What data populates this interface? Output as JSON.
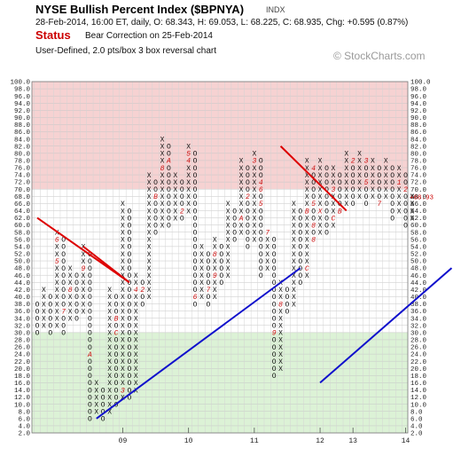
{
  "header": {
    "title": "NYSE Bullish Percent Index ($BPNYA)",
    "symbol_tag": "INDX",
    "quote": "28-Feb-2014, 16:00 ET, daily, O: 68.343, H: 69.053, L: 68.225, C: 68.935, Chg: +0.595 (0.87%)",
    "status_label": "Status",
    "status_text": "Bear Correction on 25-Feb-2014",
    "subtitle": "User-Defined, 2.0 pts/box 3 box reversal chart",
    "watermark": "© StockCharts.com"
  },
  "chart_data": {
    "type": "point-and-figure",
    "box_size": 2.0,
    "reversal": 3,
    "ylim": [
      2,
      100
    ],
    "y_ticks": [
      2.0,
      4.0,
      6.0,
      8.0,
      10.0,
      12.0,
      14.0,
      16.0,
      18.0,
      20.0,
      22.0,
      24.0,
      26.0,
      28.0,
      30.0,
      32.0,
      34.0,
      36.0,
      38.0,
      40.0,
      42.0,
      44.0,
      46.0,
      48.0,
      50.0,
      52.0,
      54.0,
      56.0,
      58.0,
      60.0,
      62.0,
      64.0,
      66.0,
      68.0,
      70.0,
      72.0,
      74.0,
      76.0,
      78.0,
      80.0,
      82.0,
      84.0,
      86.0,
      88.0,
      90.0,
      92.0,
      94.0,
      96.0,
      98.0,
      100.0
    ],
    "zones": [
      {
        "name": "overbought",
        "from": 70,
        "to": 100,
        "color": "#f6d2d2"
      },
      {
        "name": "oversold",
        "from": 2,
        "to": 30,
        "color": "#dcf2d6"
      }
    ],
    "last_value_label": "68.93",
    "year_labels": [
      {
        "text": "09",
        "column": 13
      },
      {
        "text": "10",
        "column": 23
      },
      {
        "text": "11",
        "column": 33
      },
      {
        "text": "12",
        "column": 43
      },
      {
        "text": "13",
        "column": 48
      },
      {
        "text": "14",
        "column": 56
      }
    ],
    "columns": [
      {
        "type": "O",
        "high": 38,
        "low": 30
      },
      {
        "type": "X",
        "high": 42,
        "low": 32
      },
      {
        "type": "O",
        "high": 40,
        "low": 30
      },
      {
        "type": "X",
        "high": 58,
        "low": 32
      },
      {
        "type": "O",
        "high": 56,
        "low": 30
      },
      {
        "type": "X",
        "high": 48,
        "low": 34
      },
      {
        "type": "O",
        "high": 46,
        "low": 34
      },
      {
        "type": "X",
        "high": 54,
        "low": 36
      },
      {
        "type": "O",
        "high": 52,
        "low": 6
      },
      {
        "type": "X",
        "high": 16,
        "low": 8
      },
      {
        "type": "O",
        "high": 14,
        "low": 6
      },
      {
        "type": "X",
        "high": 42,
        "low": 8
      },
      {
        "type": "O",
        "high": 40,
        "low": 10
      },
      {
        "type": "X",
        "high": 66,
        "low": 12
      },
      {
        "type": "O",
        "high": 64,
        "low": 12
      },
      {
        "type": "X",
        "high": 46,
        "low": 14
      },
      {
        "type": "O",
        "high": 44,
        "low": 38
      },
      {
        "type": "X",
        "high": 74,
        "low": 40
      },
      {
        "type": "O",
        "high": 72,
        "low": 58
      },
      {
        "type": "X",
        "high": 84,
        "low": 60
      },
      {
        "type": "O",
        "high": 82,
        "low": 60
      },
      {
        "type": "X",
        "high": 74,
        "low": 62
      },
      {
        "type": "O",
        "high": 72,
        "low": 62
      },
      {
        "type": "X",
        "high": 82,
        "low": 64
      },
      {
        "type": "O",
        "high": 80,
        "low": 38
      },
      {
        "type": "X",
        "high": 54,
        "low": 40
      },
      {
        "type": "O",
        "high": 52,
        "low": 38
      },
      {
        "type": "X",
        "high": 56,
        "low": 40
      },
      {
        "type": "O",
        "high": 54,
        "low": 44
      },
      {
        "type": "X",
        "high": 66,
        "low": 46
      },
      {
        "type": "O",
        "high": 64,
        "low": 56
      },
      {
        "type": "X",
        "high": 78,
        "low": 58
      },
      {
        "type": "O",
        "high": 76,
        "low": 54
      },
      {
        "type": "X",
        "high": 80,
        "low": 56
      },
      {
        "type": "O",
        "high": 78,
        "low": 46
      },
      {
        "type": "X",
        "high": 58,
        "low": 48
      },
      {
        "type": "O",
        "high": 56,
        "low": 18
      },
      {
        "type": "X",
        "high": 44,
        "low": 20
      },
      {
        "type": "O",
        "high": 42,
        "low": 36
      },
      {
        "type": "X",
        "high": 66,
        "low": 38
      },
      {
        "type": "O",
        "high": 64,
        "low": 44
      },
      {
        "type": "X",
        "high": 78,
        "low": 46
      },
      {
        "type": "O",
        "high": 76,
        "low": 56
      },
      {
        "type": "X",
        "high": 78,
        "low": 58
      },
      {
        "type": "O",
        "high": 76,
        "low": 58
      },
      {
        "type": "X",
        "high": 76,
        "low": 60
      },
      {
        "type": "O",
        "high": 74,
        "low": 64
      },
      {
        "type": "X",
        "high": 80,
        "low": 66
      },
      {
        "type": "O",
        "high": 78,
        "low": 66
      },
      {
        "type": "X",
        "high": 80,
        "low": 68
      },
      {
        "type": "O",
        "high": 78,
        "low": 66
      },
      {
        "type": "X",
        "high": 78,
        "low": 68
      },
      {
        "type": "O",
        "high": 76,
        "low": 66
      },
      {
        "type": "X",
        "high": 78,
        "low": 68
      },
      {
        "type": "O",
        "high": 76,
        "low": 62
      },
      {
        "type": "X",
        "high": 76,
        "low": 64
      },
      {
        "type": "O",
        "high": 74,
        "low": 60
      },
      {
        "type": "X",
        "high": 68,
        "low": 62
      }
    ],
    "month_markers": [
      {
        "column": 1,
        "value": 44,
        "label": "4"
      },
      {
        "column": 3,
        "value": 50,
        "label": "5"
      },
      {
        "column": 3,
        "value": 56,
        "label": "6"
      },
      {
        "column": 4,
        "value": 36,
        "label": "7"
      },
      {
        "column": 5,
        "value": 42,
        "label": "8"
      },
      {
        "column": 7,
        "value": 48,
        "label": "9"
      },
      {
        "column": 8,
        "value": 24,
        "label": "A"
      },
      {
        "column": 12,
        "value": 30,
        "label": "C"
      },
      {
        "column": 12,
        "value": 34,
        "label": "B"
      },
      {
        "column": 13,
        "value": 14,
        "label": "3"
      },
      {
        "column": 15,
        "value": 42,
        "label": "4"
      },
      {
        "column": 16,
        "value": 42,
        "label": "2"
      },
      {
        "column": 18,
        "value": 68,
        "label": "B"
      },
      {
        "column": 19,
        "value": 76,
        "label": "8"
      },
      {
        "column": 20,
        "value": 78,
        "label": "A"
      },
      {
        "column": 21,
        "value": 80,
        "label": "9"
      },
      {
        "column": 22,
        "value": 64,
        "label": "2"
      },
      {
        "column": 23,
        "value": 78,
        "label": "4"
      },
      {
        "column": 23,
        "value": 80,
        "label": "5"
      },
      {
        "column": 24,
        "value": 40,
        "label": "6"
      },
      {
        "column": 26,
        "value": 42,
        "label": "7"
      },
      {
        "column": 27,
        "value": 52,
        "label": "8"
      },
      {
        "column": 27,
        "value": 46,
        "label": "9"
      },
      {
        "column": 31,
        "value": 62,
        "label": "A"
      },
      {
        "column": 32,
        "value": 68,
        "label": "2"
      },
      {
        "column": 33,
        "value": 78,
        "label": "3"
      },
      {
        "column": 34,
        "value": 72,
        "label": "4"
      },
      {
        "column": 34,
        "value": 70,
        "label": "6"
      },
      {
        "column": 34,
        "value": 66,
        "label": "5"
      },
      {
        "column": 35,
        "value": 58,
        "label": "7"
      },
      {
        "column": 36,
        "value": 30,
        "label": "9"
      },
      {
        "column": 37,
        "value": 38,
        "label": "8"
      },
      {
        "column": 41,
        "value": 64,
        "label": "B"
      },
      {
        "column": 41,
        "value": 48,
        "label": "C"
      },
      {
        "column": 42,
        "value": 56,
        "label": "8"
      },
      {
        "column": 42,
        "value": 60,
        "label": "8"
      },
      {
        "column": 42,
        "value": 66,
        "label": "5"
      },
      {
        "column": 42,
        "value": 76,
        "label": "4"
      },
      {
        "column": 43,
        "value": 64,
        "label": "X"
      },
      {
        "column": 43,
        "value": 48,
        "label": "6"
      },
      {
        "column": 44,
        "value": 48,
        "label": "7"
      },
      {
        "column": 45,
        "value": 70,
        "label": "3"
      },
      {
        "column": 45,
        "value": 62,
        "label": "C"
      },
      {
        "column": 46,
        "value": 64,
        "label": "B"
      },
      {
        "column": 48,
        "value": 78,
        "label": "2"
      },
      {
        "column": 50,
        "value": 78,
        "label": "3"
      },
      {
        "column": 50,
        "value": 72,
        "label": "5"
      },
      {
        "column": 52,
        "value": 66,
        "label": "7"
      },
      {
        "column": 55,
        "value": 72,
        "label": "1"
      },
      {
        "column": 56,
        "value": 70,
        "label": "2"
      }
    ],
    "trendlines": [
      {
        "color": "#dd0000",
        "from": {
          "column": 0,
          "value": 62
        },
        "to": {
          "column": 14,
          "value": 44
        }
      },
      {
        "color": "#dd0000",
        "from": {
          "column": 7,
          "value": 54
        },
        "to": {
          "column": 14,
          "value": 44
        }
      },
      {
        "color": "#dd0000",
        "from": {
          "column": 37,
          "value": 82
        },
        "to": {
          "column": 47,
          "value": 64
        }
      },
      {
        "color": "#1010cc",
        "from": {
          "column": 9,
          "value": 6
        },
        "to": {
          "column": 40,
          "value": 48
        }
      },
      {
        "color": "#1010cc",
        "from": {
          "column": 43,
          "value": 16
        },
        "to": {
          "column": 63,
          "value": 48
        }
      }
    ]
  }
}
